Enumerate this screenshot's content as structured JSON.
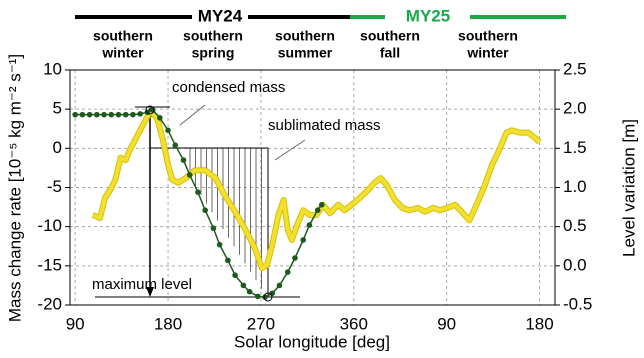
{
  "chart_data": {
    "type": "line",
    "years": [
      "MY24",
      "MY25"
    ],
    "seasons": [
      [
        "southern",
        "winter"
      ],
      [
        "southern",
        "spring"
      ],
      [
        "southern",
        "summer"
      ],
      [
        "southern",
        "fall"
      ],
      [
        "southern",
        "winter"
      ]
    ],
    "annotations": [
      "condensed mass",
      "sublimated mass",
      "maximum level"
    ],
    "xlabel": "Solar longitude [deg]",
    "ylabel": "Mass change rate [10⁻⁵ kg m⁻² s⁻¹]",
    "y2label": "Level variation [m]",
    "xlim": [
      85,
      555
    ],
    "xticks": [
      90,
      180,
      270,
      360,
      {
        "value": 450,
        "label": "90"
      },
      {
        "value": 540,
        "label": "180"
      }
    ],
    "ylim": [
      -20,
      10
    ],
    "yticks": [
      10,
      5,
      0,
      -5,
      -10,
      -15,
      -20
    ],
    "y2lim": [
      -0.5,
      2.5
    ],
    "y2ticks": [
      {
        "value": 2.5,
        "label": "2.5"
      },
      {
        "value": 2,
        "label": "2.0"
      },
      {
        "value": 1.5,
        "label": "1.5"
      },
      {
        "value": 1,
        "label": "1.0"
      },
      {
        "value": 0.5,
        "label": "0.5"
      },
      {
        "value": 0,
        "label": "0.0"
      },
      {
        "value": -0.5,
        "label": "-0.5"
      }
    ],
    "grid": true,
    "series": [
      {
        "color": "#f2e030",
        "x": [
          107,
          114,
          119,
          124,
          129,
          134,
          139,
          143,
          153,
          161,
          165,
          170,
          175,
          180,
          184,
          190,
          197,
          206,
          216,
          226,
          235,
          245,
          255,
          264,
          271,
          276,
          281,
          287,
          292,
          296,
          300,
          305,
          311,
          317,
          324,
          330,
          337,
          345,
          351,
          358,
          366,
          374,
          380,
          386,
          392,
          400,
          407,
          414,
          422,
          429,
          437,
          443,
          451,
          458,
          466,
          472,
          479,
          487,
          494,
          501,
          508,
          513,
          521,
          529,
          536,
          540
        ],
        "values": [
          -8.5,
          -8.9,
          -6.3,
          -5.3,
          -4,
          -1.2,
          -1.5,
          -0.2,
          2.3,
          4.3,
          4.6,
          3.6,
          1.1,
          -2.1,
          -4,
          -4.4,
          -3.8,
          -2.8,
          -2.8,
          -3.8,
          -6,
          -8.1,
          -10.4,
          -12.7,
          -15.3,
          -14.9,
          -12.3,
          -8.5,
          -6.6,
          -10.4,
          -11.7,
          -9.8,
          -7.9,
          -8.5,
          -8.5,
          -7.2,
          -8.3,
          -7.2,
          -7.9,
          -7.2,
          -6.3,
          -5.3,
          -4.4,
          -3.8,
          -4.7,
          -6.6,
          -7.6,
          -7.9,
          -7.6,
          -8.1,
          -7.6,
          -7.9,
          -7.6,
          -7.2,
          -8.3,
          -9.2,
          -7.2,
          -4.7,
          -2.1,
          -0.2,
          2,
          2.3,
          2,
          2,
          1.3,
          0.8
        ]
      },
      {
        "color": "#1e5a1e",
        "axis": "y2",
        "x": [
          90,
          97,
          104,
          111,
          118,
          125,
          132,
          139,
          146,
          153,
          160,
          165,
          172,
          180,
          187,
          195,
          201,
          209,
          216,
          224,
          230,
          238,
          245,
          253,
          259,
          267,
          274,
          281,
          288,
          296,
          303,
          311,
          317,
          325,
          329
        ],
        "values": [
          1.93,
          1.93,
          1.93,
          1.93,
          1.93,
          1.93,
          1.93,
          1.93,
          1.93,
          1.94,
          1.96,
          1.99,
          1.89,
          1.73,
          1.54,
          1.35,
          1.16,
          0.94,
          0.71,
          0.48,
          0.27,
          0.07,
          -0.12,
          -0.25,
          -0.33,
          -0.39,
          -0.4,
          -0.35,
          -0.25,
          -0.08,
          0.1,
          0.33,
          0.52,
          0.71,
          0.78
        ]
      }
    ]
  }
}
